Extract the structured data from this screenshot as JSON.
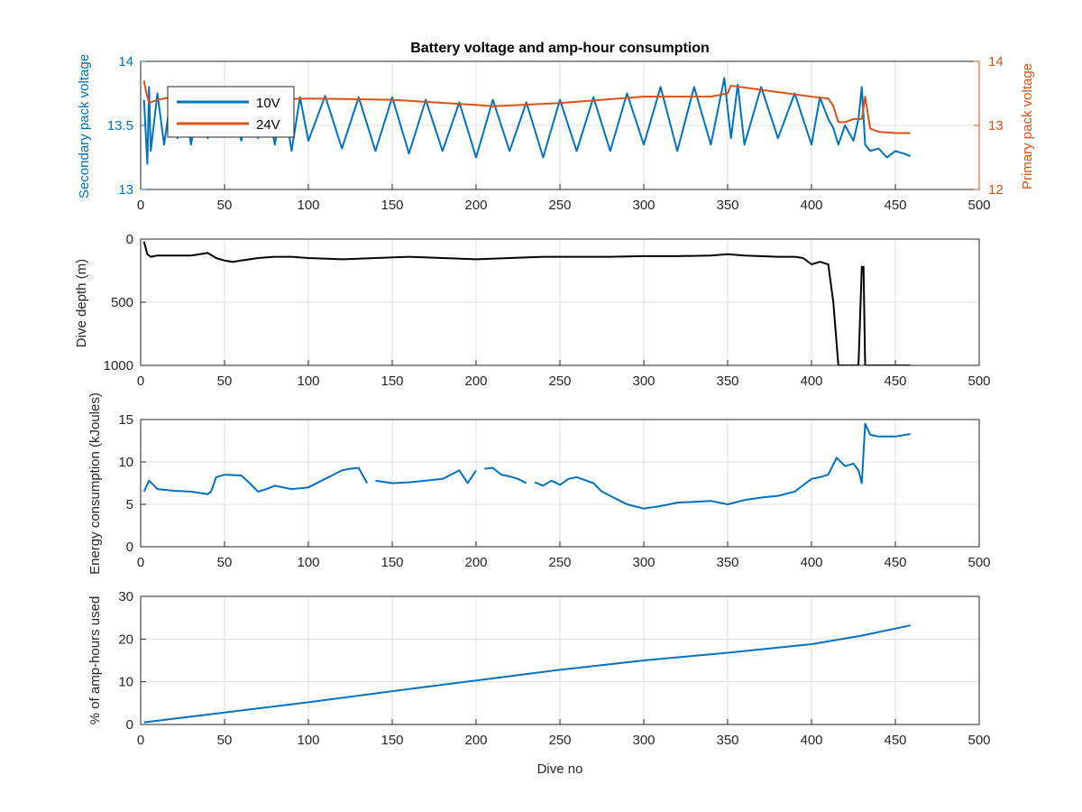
{
  "colors": {
    "blue": "#0072BD",
    "orange": "#D95319",
    "black": "#000000",
    "axis": "#262626",
    "grid": "#dfdfdf"
  },
  "chart_data": [
    {
      "type": "line",
      "title": "Battery voltage and amp-hour consumption",
      "xlabel": "",
      "xlim": [
        0,
        500
      ],
      "xticks": [
        0,
        50,
        100,
        150,
        200,
        250,
        300,
        350,
        400,
        450,
        500
      ],
      "ylabel": "Secondary pack voltage",
      "ylim": [
        13,
        14
      ],
      "yticks": [
        13,
        13.5,
        14
      ],
      "ytick_labels": [
        "13",
        "13.5",
        "14"
      ],
      "y2label": "Primary pack voltage",
      "y2lim": [
        12,
        14
      ],
      "y2ticks": [
        12,
        13,
        14
      ],
      "legend_position": "top-left",
      "grid": true,
      "series": [
        {
          "name": "10V",
          "axis": "left",
          "color": "#0072BD",
          "x": [
            2,
            4,
            5,
            6,
            10,
            14,
            18,
            22,
            26,
            30,
            35,
            40,
            45,
            50,
            55,
            60,
            65,
            70,
            75,
            80,
            85,
            90,
            95,
            100,
            110,
            120,
            130,
            140,
            150,
            160,
            170,
            180,
            190,
            200,
            210,
            220,
            230,
            240,
            250,
            260,
            270,
            280,
            290,
            300,
            310,
            320,
            330,
            340,
            348,
            352,
            356,
            360,
            370,
            380,
            390,
            400,
            405,
            410,
            413,
            416,
            420,
            425,
            428,
            430,
            432,
            435,
            440,
            445,
            450,
            455,
            459
          ],
          "y": [
            13.7,
            13.2,
            13.8,
            13.3,
            13.75,
            13.35,
            13.72,
            13.4,
            13.7,
            13.35,
            13.72,
            13.4,
            13.7,
            13.45,
            13.72,
            13.38,
            13.73,
            13.4,
            13.72,
            13.35,
            13.73,
            13.3,
            13.72,
            13.38,
            13.73,
            13.32,
            13.72,
            13.3,
            13.72,
            13.28,
            13.7,
            13.3,
            13.68,
            13.25,
            13.7,
            13.3,
            13.68,
            13.25,
            13.7,
            13.3,
            13.72,
            13.3,
            13.75,
            13.35,
            13.8,
            13.3,
            13.8,
            13.35,
            13.87,
            13.4,
            13.82,
            13.35,
            13.8,
            13.4,
            13.75,
            13.35,
            13.72,
            13.55,
            13.48,
            13.35,
            13.5,
            13.38,
            13.55,
            13.8,
            13.35,
            13.3,
            13.32,
            13.25,
            13.3,
            13.28,
            13.26
          ]
        },
        {
          "name": "24V",
          "axis": "right",
          "color": "#D95319",
          "x": [
            2,
            3,
            5,
            10,
            20,
            40,
            60,
            100,
            150,
            200,
            210,
            250,
            300,
            340,
            350,
            352,
            400,
            410,
            413,
            416,
            420,
            425,
            430,
            432,
            435,
            440,
            450,
            459
          ],
          "y": [
            13.7,
            13.55,
            13.35,
            13.4,
            13.45,
            13.45,
            13.4,
            13.42,
            13.4,
            13.32,
            13.3,
            13.35,
            13.45,
            13.45,
            13.5,
            13.62,
            13.45,
            13.42,
            13.3,
            13.05,
            13.05,
            13.1,
            13.1,
            13.45,
            12.95,
            12.9,
            12.88,
            12.88
          ]
        }
      ]
    },
    {
      "type": "line",
      "xlabel": "",
      "xlim": [
        0,
        500
      ],
      "xticks": [
        0,
        50,
        100,
        150,
        200,
        250,
        300,
        350,
        400,
        450,
        500
      ],
      "ylabel": "Dive depth (m)",
      "ylim": [
        0,
        1000
      ],
      "yticks": [
        0,
        500,
        1000
      ],
      "y_reversed": true,
      "grid": true,
      "series": [
        {
          "color": "#000000",
          "x": [
            2,
            4,
            6,
            10,
            20,
            30,
            40,
            45,
            50,
            55,
            60,
            70,
            80,
            90,
            100,
            120,
            140,
            160,
            180,
            200,
            220,
            240,
            260,
            280,
            300,
            320,
            340,
            350,
            360,
            380,
            390,
            395,
            400,
            405,
            410,
            413,
            416,
            418,
            425,
            428,
            430,
            431,
            432,
            433,
            435,
            440,
            450,
            455,
            459
          ],
          "y": [
            20,
            120,
            140,
            130,
            130,
            130,
            110,
            150,
            170,
            180,
            170,
            150,
            140,
            140,
            150,
            160,
            150,
            140,
            150,
            160,
            150,
            140,
            140,
            140,
            135,
            135,
            130,
            120,
            130,
            140,
            140,
            150,
            200,
            180,
            200,
            500,
            1000,
            1000,
            1000,
            1000,
            220,
            220,
            1000,
            1000,
            1000,
            1000,
            1000,
            1000,
            1000
          ]
        }
      ]
    },
    {
      "type": "line",
      "xlabel": "",
      "xlim": [
        0,
        500
      ],
      "xticks": [
        0,
        50,
        100,
        150,
        200,
        250,
        300,
        350,
        400,
        450,
        500
      ],
      "ylabel": "Energy consumption (kJoules)",
      "ylim": [
        0,
        15
      ],
      "yticks": [
        0,
        5,
        10,
        15
      ],
      "grid": true,
      "segments": [
        {
          "x": [
            2,
            5,
            10,
            20,
            30,
            40,
            42,
            45,
            50,
            60,
            65,
            70,
            75,
            80,
            90,
            100,
            110,
            115,
            120,
            125,
            130,
            135
          ],
          "y": [
            6.5,
            7.8,
            6.8,
            6.6,
            6.5,
            6.2,
            6.5,
            8.2,
            8.5,
            8.4,
            7.5,
            6.5,
            6.8,
            7.2,
            6.8,
            7.0,
            8.0,
            8.5,
            9.0,
            9.2,
            9.3,
            7.5
          ]
        },
        {
          "x": [
            140,
            150,
            160,
            170,
            180,
            190,
            195,
            200
          ],
          "y": [
            7.8,
            7.5,
            7.6,
            7.8,
            8.0,
            9.0,
            7.5,
            9.0
          ]
        },
        {
          "x": [
            205,
            210,
            215,
            220,
            225,
            230
          ],
          "y": [
            9.2,
            9.3,
            8.5,
            8.3,
            8.0,
            7.5
          ]
        },
        {
          "x": [
            235,
            240,
            245,
            250,
            255,
            260,
            270,
            275,
            280,
            285,
            290,
            300,
            310,
            320,
            330,
            340,
            350,
            360,
            370,
            380,
            390,
            400,
            405,
            410,
            415,
            420,
            425,
            428,
            430,
            432,
            435,
            440,
            450,
            459
          ],
          "y": [
            7.6,
            7.2,
            7.8,
            7.3,
            8.0,
            8.2,
            7.5,
            6.5,
            6.0,
            5.5,
            5.0,
            4.5,
            4.8,
            5.2,
            5.3,
            5.4,
            5.0,
            5.5,
            5.8,
            6.0,
            6.5,
            8.0,
            8.2,
            8.5,
            10.5,
            9.5,
            9.8,
            9.0,
            7.5,
            14.5,
            13.2,
            13.0,
            13.0,
            13.3
          ]
        }
      ]
    },
    {
      "type": "line",
      "xlabel": "Dive no",
      "xlim": [
        0,
        500
      ],
      "xticks": [
        0,
        50,
        100,
        150,
        200,
        250,
        300,
        350,
        400,
        450,
        500
      ],
      "ylabel": "% of amp-hours used",
      "ylim": [
        0,
        30
      ],
      "yticks": [
        0,
        10,
        20,
        30
      ],
      "grid": true,
      "series": [
        {
          "color": "#0072BD",
          "x": [
            2,
            50,
            100,
            150,
            200,
            250,
            300,
            350,
            400,
            430,
            459
          ],
          "y": [
            0.5,
            2.8,
            5.2,
            7.8,
            10.3,
            12.8,
            15.0,
            16.8,
            18.8,
            20.8,
            23.2
          ]
        }
      ]
    }
  ]
}
